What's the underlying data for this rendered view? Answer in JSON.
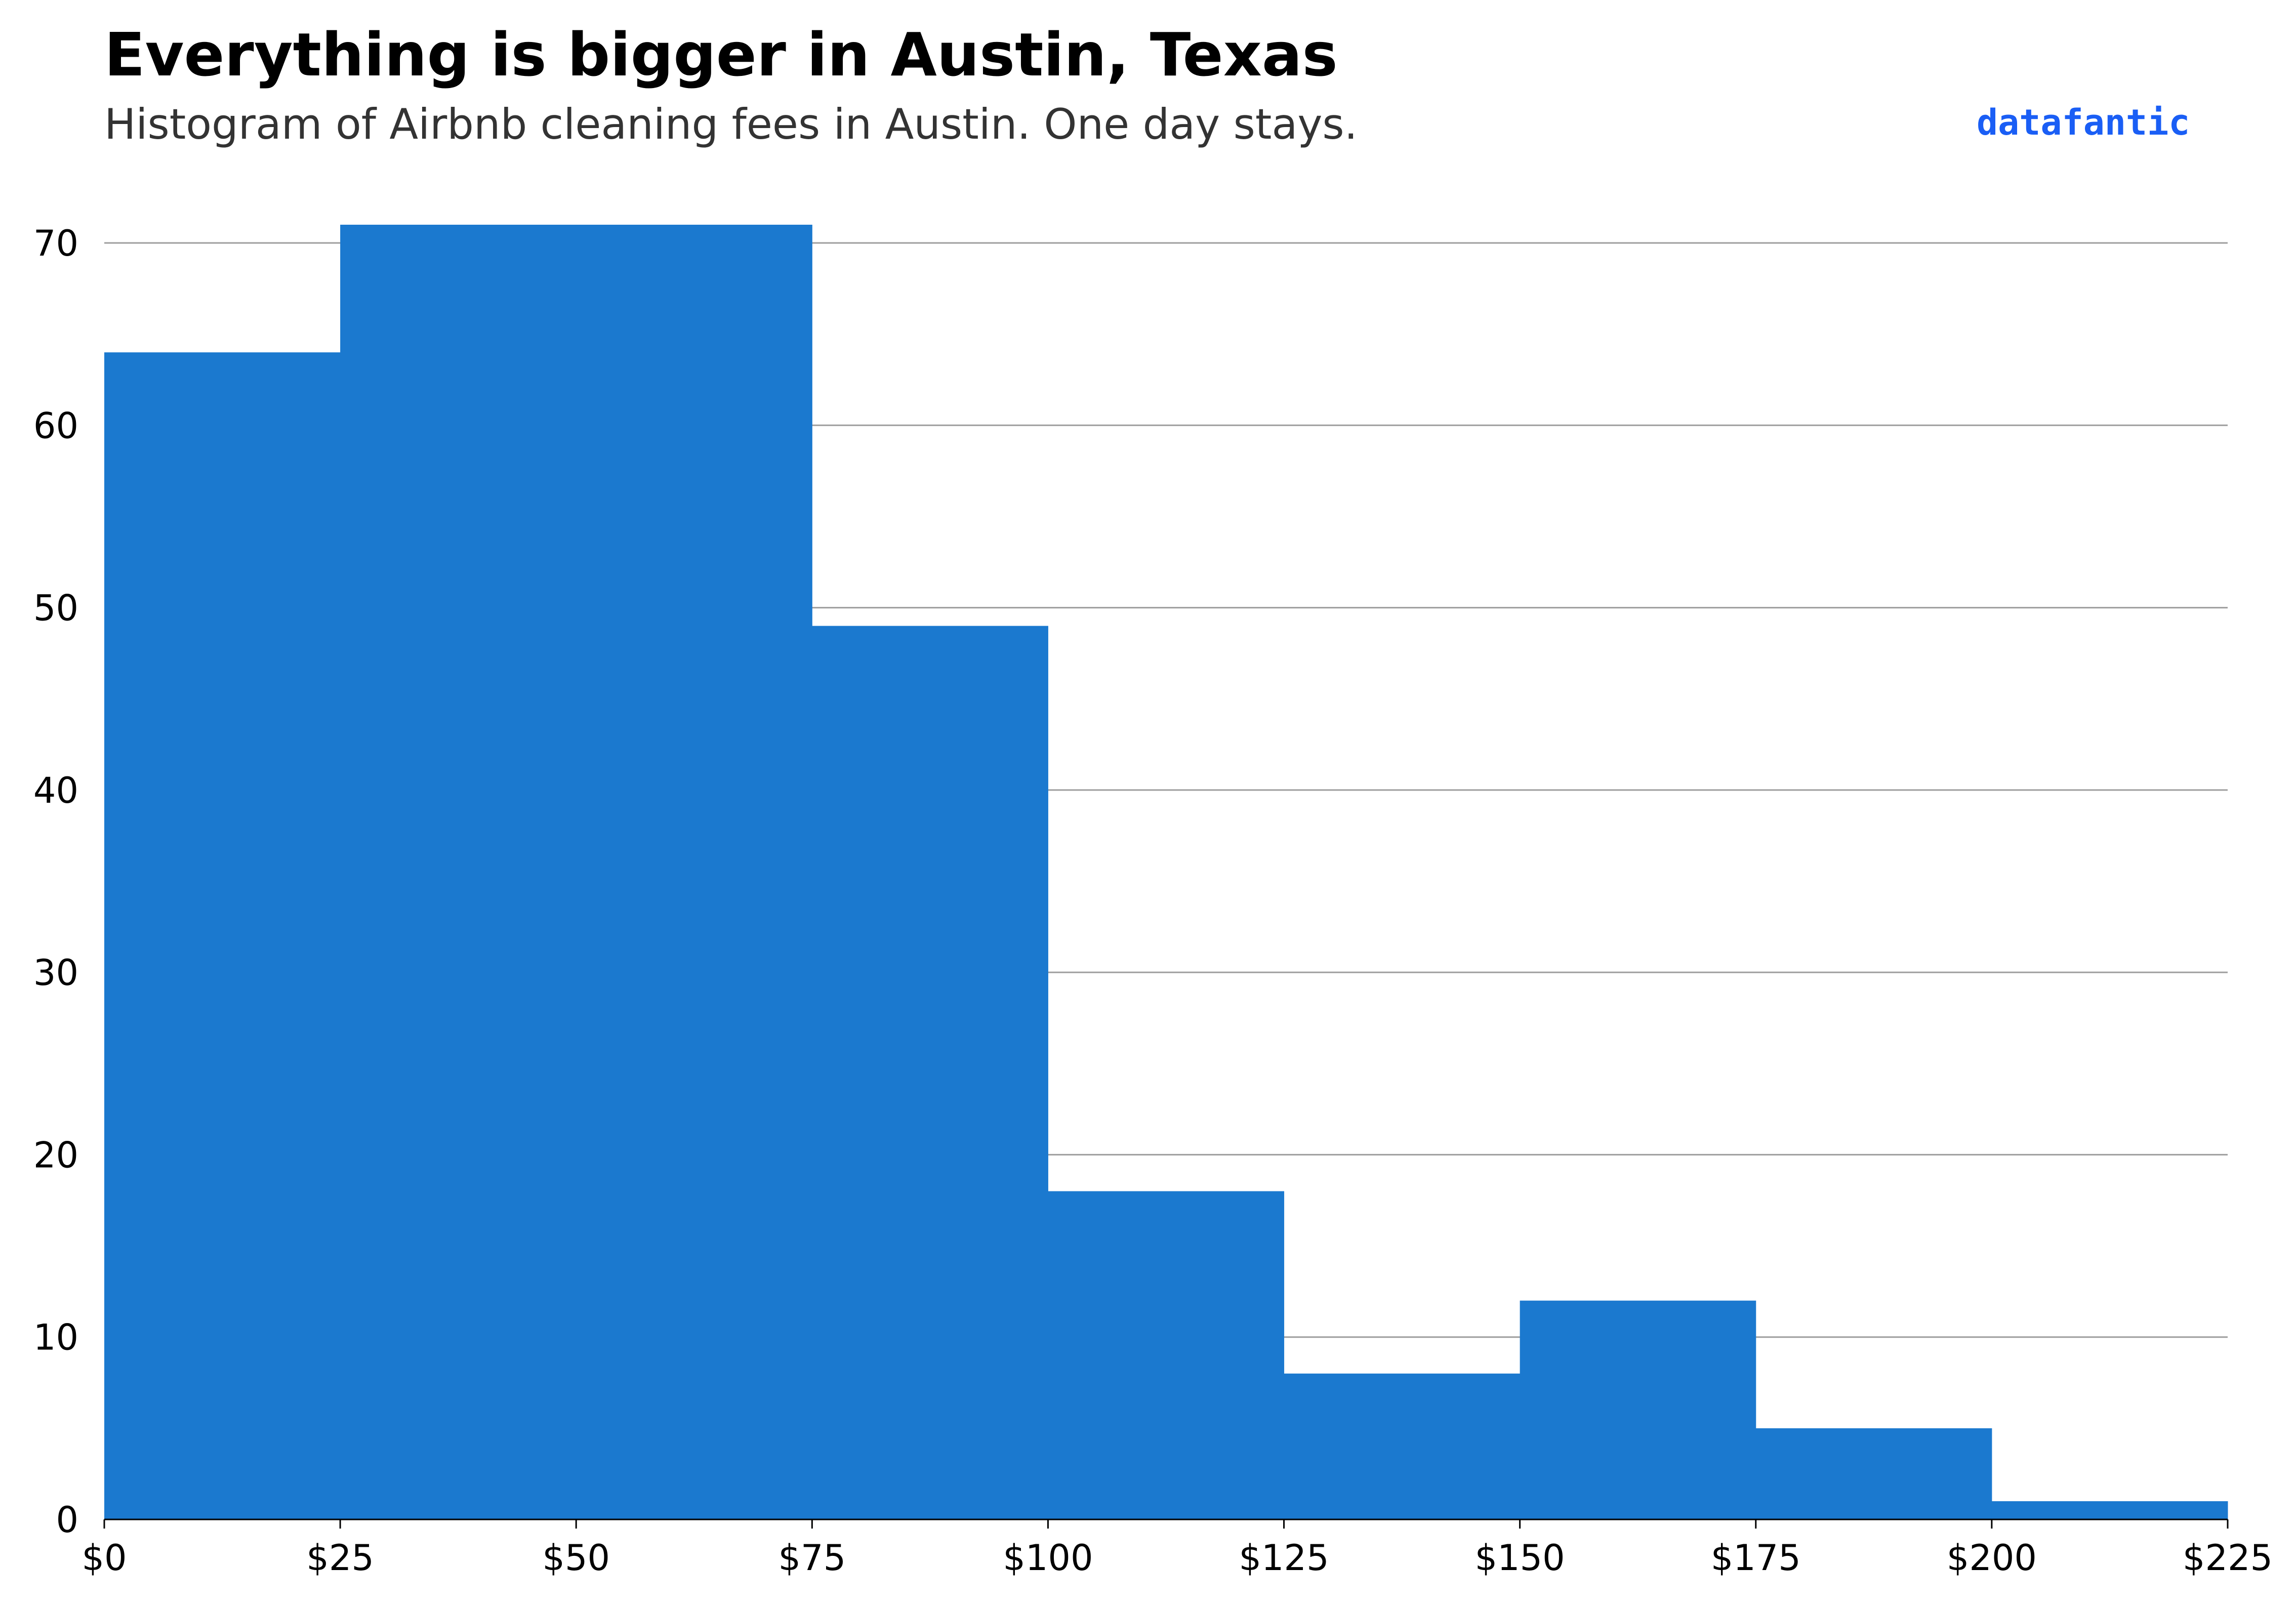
{
  "title": "Everything is bigger in Austin, Texas",
  "subtitle": "Histogram of Airbnb cleaning fees in Austin. One day stays.",
  "brand": "datafantic",
  "colors": {
    "bar": "#1b79cf",
    "grid": "#9e9e9e",
    "axis": "#000000",
    "brand": "#1a5ef5"
  },
  "chart_data": {
    "type": "bar",
    "title": "Everything is bigger in Austin, Texas",
    "subtitle": "Histogram of Airbnb cleaning fees in Austin. One day stays.",
    "xlabel": "",
    "ylabel": "",
    "bins": [
      {
        "start": 0,
        "end": 25,
        "count": 64
      },
      {
        "start": 25,
        "end": 50,
        "count": 71
      },
      {
        "start": 50,
        "end": 75,
        "count": 71
      },
      {
        "start": 75,
        "end": 100,
        "count": 49
      },
      {
        "start": 100,
        "end": 125,
        "count": 18
      },
      {
        "start": 125,
        "end": 150,
        "count": 8
      },
      {
        "start": 150,
        "end": 175,
        "count": 12
      },
      {
        "start": 175,
        "end": 200,
        "count": 5
      },
      {
        "start": 200,
        "end": 225,
        "count": 1
      }
    ],
    "xlim": [
      0,
      225
    ],
    "ylim": [
      0,
      72
    ],
    "x_ticks": [
      0,
      25,
      50,
      75,
      100,
      125,
      150,
      175,
      200,
      225
    ],
    "x_tick_labels": [
      "$0",
      "$25",
      "$50",
      "$75",
      "$100",
      "$125",
      "$150",
      "$175",
      "$200",
      "$225"
    ],
    "y_ticks": [
      0,
      10,
      20,
      30,
      40,
      50,
      60,
      70
    ],
    "y_tick_labels": [
      "0",
      "10",
      "20",
      "30",
      "40",
      "50",
      "60",
      "70"
    ],
    "grid": "horizontal",
    "legend": "none"
  }
}
